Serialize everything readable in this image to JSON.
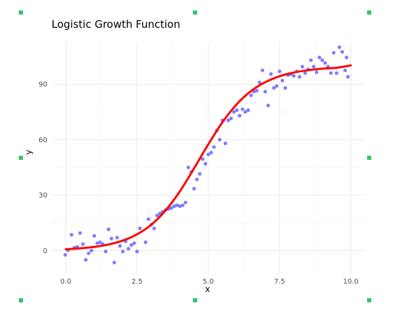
{
  "chart_data": {
    "type": "scatter",
    "title": "Logistic Growth Function",
    "xlabel": "x",
    "ylabel": "y",
    "xlim": [
      -0.5,
      10.5
    ],
    "ylim": [
      -13,
      113
    ],
    "x_ticks": [
      0.0,
      2.5,
      5.0,
      7.5,
      10.0
    ],
    "x_tick_labels": [
      "0.0",
      "2.5",
      "5.0",
      "7.5",
      "10.0"
    ],
    "y_ticks": [
      0,
      30,
      60,
      90
    ],
    "y_tick_labels": [
      "0",
      "30",
      "60",
      "90"
    ],
    "grid": true,
    "series": [
      {
        "kind": "points",
        "color": "#6666ff",
        "points": [
          [
            -0.02,
            -2.3
          ],
          [
            0.08,
            0.1
          ],
          [
            0.2,
            8.5
          ],
          [
            0.3,
            1.5
          ],
          [
            0.4,
            2.0
          ],
          [
            0.5,
            9.5
          ],
          [
            0.6,
            3.5
          ],
          [
            0.7,
            -5.0
          ],
          [
            0.8,
            -1.5
          ],
          [
            0.9,
            0.0
          ],
          [
            1.0,
            8.0
          ],
          [
            1.1,
            4.0
          ],
          [
            1.2,
            4.5
          ],
          [
            1.3,
            3.5
          ],
          [
            1.4,
            -0.5
          ],
          [
            1.5,
            11.5
          ],
          [
            1.6,
            6.5
          ],
          [
            1.7,
            -6.5
          ],
          [
            1.8,
            7.0
          ],
          [
            1.9,
            2.5
          ],
          [
            2.0,
            -0.5
          ],
          [
            2.1,
            5.0
          ],
          [
            2.2,
            1.0
          ],
          [
            2.3,
            3.0
          ],
          [
            2.4,
            4.0
          ],
          [
            2.5,
            -0.5
          ],
          [
            2.6,
            12.0
          ],
          [
            2.8,
            4.5
          ],
          [
            2.9,
            17.0
          ],
          [
            3.0,
            14.0
          ],
          [
            3.1,
            12.0
          ],
          [
            3.2,
            19.0
          ],
          [
            3.3,
            20.0
          ],
          [
            3.4,
            21.0
          ],
          [
            3.5,
            22.0
          ],
          [
            3.6,
            22.5
          ],
          [
            3.7,
            23.0
          ],
          [
            3.8,
            24.0
          ],
          [
            3.9,
            24.5
          ],
          [
            4.0,
            24.0
          ],
          [
            4.1,
            24.5
          ],
          [
            4.2,
            26.0
          ],
          [
            4.3,
            45.0
          ],
          [
            4.4,
            42.5
          ],
          [
            4.5,
            33.5
          ],
          [
            4.6,
            38.5
          ],
          [
            4.7,
            41.5
          ],
          [
            4.8,
            49.5
          ],
          [
            4.9,
            47.0
          ],
          [
            5.0,
            52.0
          ],
          [
            5.1,
            53.0
          ],
          [
            5.2,
            56.0
          ],
          [
            5.3,
            65.0
          ],
          [
            5.4,
            60.0
          ],
          [
            5.5,
            70.5
          ],
          [
            5.6,
            58.0
          ],
          [
            5.7,
            70.5
          ],
          [
            5.8,
            71.5
          ],
          [
            5.9,
            75.0
          ],
          [
            6.0,
            76.0
          ],
          [
            6.1,
            73.0
          ],
          [
            6.2,
            76.5
          ],
          [
            6.3,
            75.0
          ],
          [
            6.4,
            76.0
          ],
          [
            6.5,
            84.0
          ],
          [
            6.6,
            86.0
          ],
          [
            6.7,
            86.5
          ],
          [
            6.8,
            91.0
          ],
          [
            6.9,
            97.5
          ],
          [
            7.0,
            86.0
          ],
          [
            7.1,
            78.5
          ],
          [
            7.2,
            95.5
          ],
          [
            7.3,
            88.0
          ],
          [
            7.4,
            89.0
          ],
          [
            7.5,
            97.0
          ],
          [
            7.6,
            92.0
          ],
          [
            7.7,
            88.0
          ],
          [
            7.8,
            95.0
          ],
          [
            7.9,
            95.5
          ],
          [
            8.0,
            94.5
          ],
          [
            8.1,
            97.0
          ],
          [
            8.2,
            94.0
          ],
          [
            8.3,
            99.5
          ],
          [
            8.4,
            96.0
          ],
          [
            8.5,
            98.0
          ],
          [
            8.6,
            103.0
          ],
          [
            8.7,
            99.5
          ],
          [
            8.8,
            96.5
          ],
          [
            8.9,
            104.5
          ],
          [
            9.0,
            103.0
          ],
          [
            9.1,
            101.5
          ],
          [
            9.2,
            99.5
          ],
          [
            9.3,
            96.0
          ],
          [
            9.4,
            107.0
          ],
          [
            9.5,
            96.0
          ],
          [
            9.6,
            110.0
          ],
          [
            9.7,
            107.5
          ],
          [
            9.8,
            97.5
          ],
          [
            9.9,
            94.0
          ],
          [
            9.85,
            104.5
          ]
        ]
      },
      {
        "kind": "fitted-curve",
        "color": "#ff0000",
        "x": [
          0.0,
          0.5,
          1.0,
          1.5,
          2.0,
          2.5,
          3.0,
          3.5,
          4.0,
          4.5,
          5.0,
          5.5,
          6.0,
          6.5,
          7.0,
          7.5,
          8.0,
          8.5,
          9.0,
          9.5,
          10.0
        ],
        "y": [
          0.7,
          1.2,
          2.0,
          3.3,
          5.4,
          8.8,
          14.0,
          21.7,
          32.0,
          44.5,
          57.5,
          69.5,
          79.2,
          86.3,
          91.1,
          94.3,
          96.3,
          97.6,
          98.4,
          98.9,
          100.2
        ]
      }
    ]
  }
}
